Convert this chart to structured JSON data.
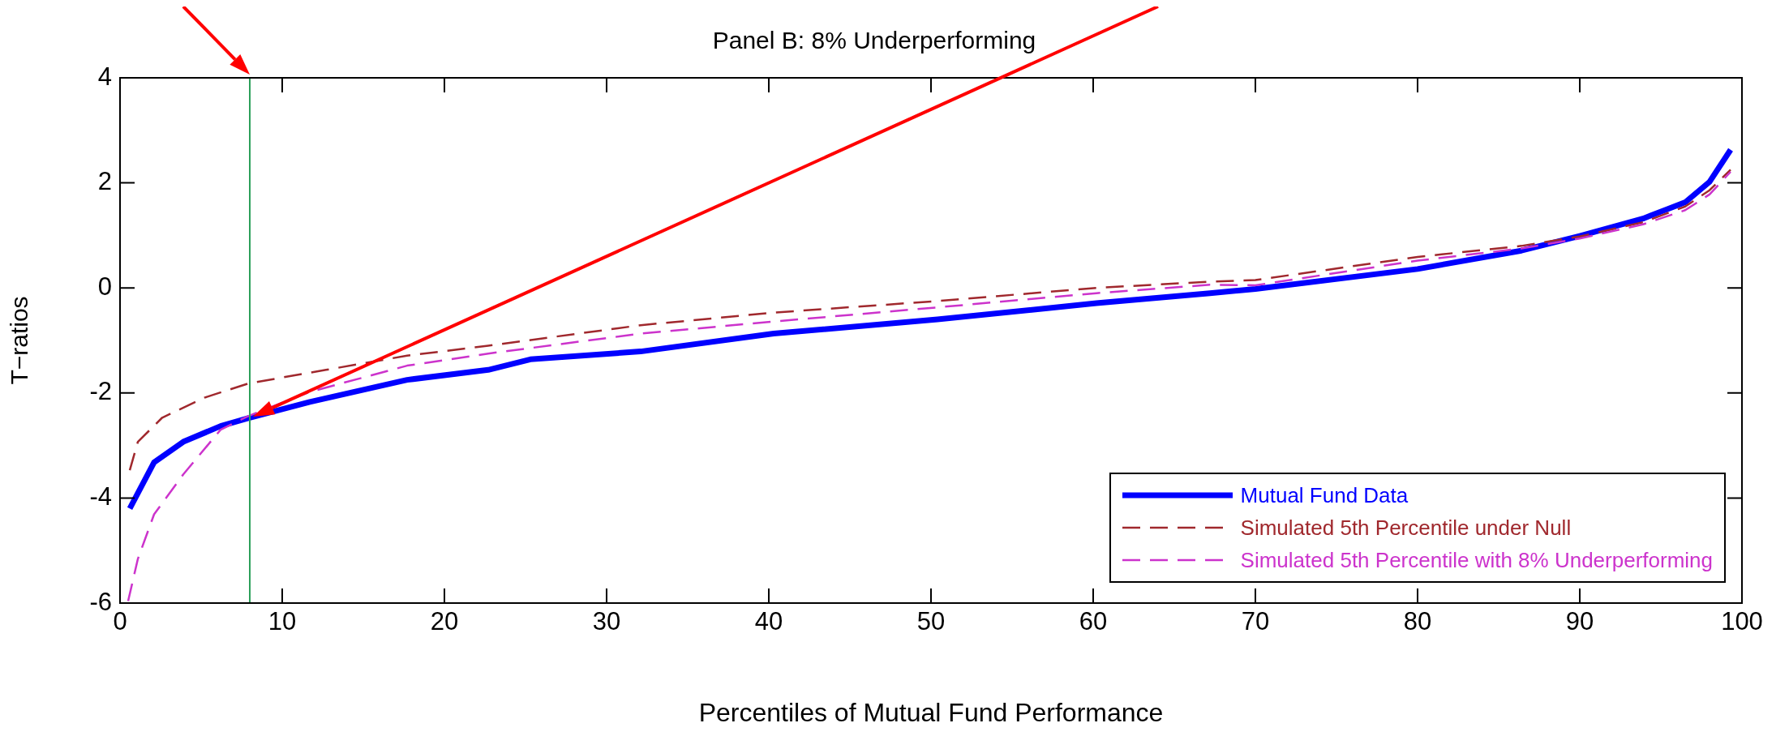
{
  "chart_data": {
    "type": "line",
    "title": "Panel B: 8% Underperforming",
    "xlabel": "Percentiles of Mutual Fund Performance",
    "ylabel": "T−ratios",
    "xlim": [
      0,
      100
    ],
    "xticks": [
      0,
      10,
      20,
      30,
      40,
      50,
      60,
      70,
      80,
      90,
      100
    ],
    "ylim": [
      -6,
      4
    ],
    "yticks": [
      -6,
      -4,
      -2,
      0,
      2,
      4
    ],
    "grid": false,
    "legend": "bottom right",
    "marker": "none",
    "ref_lines": [
      {
        "axis": "x",
        "value": 8,
        "color": "#2ca05a"
      }
    ],
    "series": [
      {
        "name": "Mutual Fund Data",
        "color": "#0000ff",
        "line_style": "solid",
        "x": [
          0.6,
          2.1,
          3.9,
          6.2,
          7.9,
          11.7,
          17.7,
          22.7,
          25.3,
          32.1,
          40.3,
          50.4,
          60.2,
          67.2,
          70,
          80,
          86.4,
          90,
          93.9,
          96.5,
          98,
          99.3
        ],
        "values": [
          -4.2,
          -3.32,
          -2.93,
          -2.63,
          -2.48,
          -2.17,
          -1.75,
          -1.56,
          -1.36,
          -1.21,
          -0.87,
          -0.6,
          -0.29,
          -0.1,
          -0.02,
          0.36,
          0.71,
          0.99,
          1.32,
          1.63,
          2.02,
          2.63
        ]
      },
      {
        "name": "Simulated 5th Percentile under Null",
        "color": "#a0282d",
        "line_style": "dashed",
        "x": [
          0.6,
          1.1,
          2.6,
          5.2,
          7.9,
          12.7,
          17.7,
          22.7,
          32.1,
          40.3,
          50.4,
          60.2,
          67.2,
          70,
          80,
          86.4,
          90,
          93.9,
          96.5,
          98,
          99.3
        ],
        "values": [
          -3.47,
          -2.93,
          -2.47,
          -2.09,
          -1.82,
          -1.56,
          -1.29,
          -1.1,
          -0.71,
          -0.47,
          -0.25,
          0,
          0.12,
          0.15,
          0.59,
          0.8,
          0.98,
          1.25,
          1.55,
          1.86,
          2.25
        ]
      },
      {
        "name": "Simulated 5th Percentile with 8% Underperforming",
        "color": "#cc33cc",
        "line_style": "dashed",
        "x": [
          0.5,
          1.1,
          2.1,
          3.9,
          6.2,
          7.9,
          11.7,
          17.7,
          22.7,
          32.1,
          40.3,
          50.4,
          60.2,
          67.2,
          70,
          80,
          86.4,
          90,
          93.9,
          96.5,
          98,
          99.3
        ],
        "values": [
          -5.96,
          -5.16,
          -4.31,
          -3.55,
          -2.7,
          -2.44,
          -1.98,
          -1.48,
          -1.25,
          -0.87,
          -0.64,
          -0.37,
          -0.1,
          0.06,
          0.05,
          0.52,
          0.75,
          0.94,
          1.21,
          1.48,
          1.78,
          2.21
        ]
      }
    ]
  }
}
